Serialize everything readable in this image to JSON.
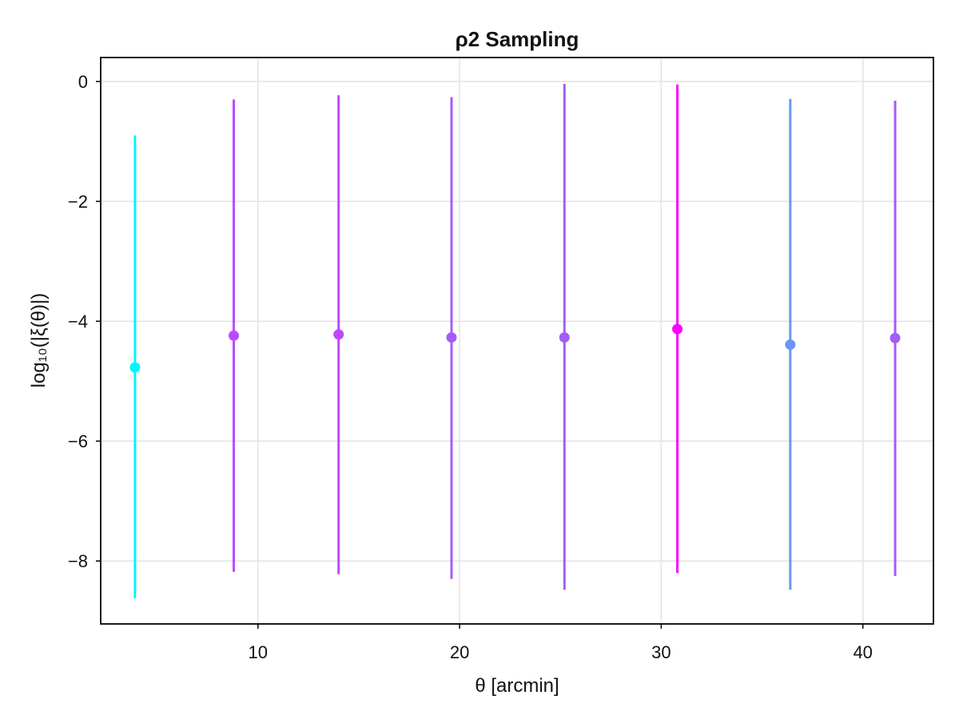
{
  "chart_data": {
    "type": "scatter",
    "title": "ρ2 Sampling",
    "xlabel": "θ [arcmin]",
    "ylabel": "log₁₀(|ξ(θ)|)",
    "xlim": [
      2.2,
      43.5
    ],
    "ylim": [
      -9.05,
      0.4
    ],
    "xticks": [
      10,
      20,
      30,
      40
    ],
    "yticks": [
      0,
      -2,
      -4,
      -6,
      -8
    ],
    "xtick_labels": [
      "10",
      "20",
      "30",
      "40"
    ],
    "ytick_labels": [
      "0",
      "−2",
      "−4",
      "−6",
      "−8"
    ],
    "grid": true,
    "points": [
      {
        "x": 3.9,
        "y": -4.77,
        "ylow": -8.62,
        "yhigh": -0.9,
        "color": "#00f5ff"
      },
      {
        "x": 8.8,
        "y": -4.24,
        "ylow": -8.18,
        "yhigh": -0.3,
        "color": "#b84dff"
      },
      {
        "x": 14.0,
        "y": -4.22,
        "ylow": -8.22,
        "yhigh": -0.23,
        "color": "#c147ff"
      },
      {
        "x": 19.6,
        "y": -4.27,
        "ylow": -8.3,
        "yhigh": -0.26,
        "color": "#a55cf7"
      },
      {
        "x": 25.2,
        "y": -4.27,
        "ylow": -8.48,
        "yhigh": -0.04,
        "color": "#a15ff3"
      },
      {
        "x": 30.8,
        "y": -4.13,
        "ylow": -8.2,
        "yhigh": -0.05,
        "color": "#ff00ff"
      },
      {
        "x": 36.4,
        "y": -4.39,
        "ylow": -8.48,
        "yhigh": -0.29,
        "color": "#6a97f2"
      },
      {
        "x": 41.6,
        "y": -4.28,
        "ylow": -8.25,
        "yhigh": -0.32,
        "color": "#a55cf7"
      }
    ]
  }
}
